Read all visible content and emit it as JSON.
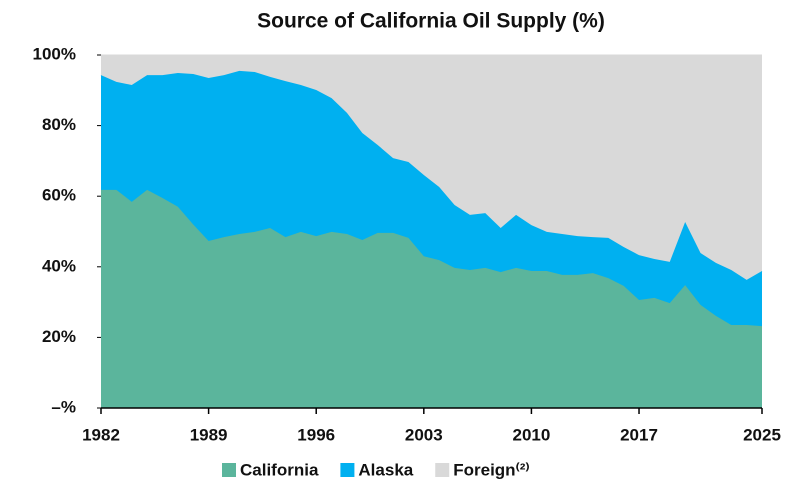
{
  "chart_data": {
    "type": "stacked_area",
    "title": "Source of California Oil Supply (%)",
    "x": [
      1982,
      1983,
      1984,
      1985,
      1986,
      1987,
      1988,
      1989,
      1990,
      1991,
      1992,
      1993,
      1994,
      1995,
      1996,
      1997,
      1998,
      1999,
      2000,
      2001,
      2002,
      2003,
      2004,
      2005,
      2006,
      2007,
      2008,
      2009,
      2010,
      2011,
      2012,
      2013,
      2014,
      2015,
      2016,
      2017,
      2018,
      2019,
      2020,
      2021,
      2022,
      2023,
      2024,
      2025
    ],
    "series": [
      {
        "name": "California",
        "color": "#5bb59c",
        "values": [
          61.8,
          61.8,
          58.4,
          61.8,
          59.5,
          57,
          52,
          47.3,
          48.4,
          49.3,
          49.9,
          51,
          48.4,
          49.9,
          48.7,
          49.9,
          49.3,
          47.6,
          49.6,
          49.6,
          48.2,
          43,
          41.9,
          39.7,
          39.1,
          39.7,
          38.5,
          39.7,
          38.8,
          38.8,
          37.7,
          37.7,
          38.2,
          36.8,
          34.6,
          30.6,
          31.2,
          29.7,
          34.8,
          29.2,
          26.1,
          23.5,
          23.5,
          23.2
        ]
      },
      {
        "name": "Alaska",
        "color": "#00b0f0",
        "values": [
          32.5,
          30.6,
          33.1,
          32.5,
          34.8,
          37.9,
          42.6,
          46.2,
          45.9,
          46.2,
          45.3,
          42.8,
          44.2,
          41.6,
          41.4,
          37.9,
          34.3,
          30.3,
          24.9,
          21.2,
          21.5,
          23,
          20.7,
          17.8,
          15.6,
          15.5,
          12.5,
          15,
          13,
          11.1,
          11.6,
          11,
          10.2,
          11.4,
          11,
          12.7,
          11,
          11.7,
          17.9,
          14.7,
          15,
          15.6,
          12.8,
          15.6
        ]
      },
      {
        "name": "Foreign⁽²⁾",
        "color": "#d9d9d9",
        "values": [
          5.7,
          7.6,
          8.5,
          5.7,
          5.7,
          5.1,
          5.4,
          6.5,
          5.7,
          4.5,
          4.8,
          6.2,
          7.4,
          8.5,
          9.9,
          12.2,
          16.4,
          22.1,
          25.5,
          29.2,
          30.3,
          34,
          37.4,
          42.5,
          45.3,
          44.8,
          49,
          45.3,
          48.2,
          50.1,
          50.7,
          51.3,
          51.6,
          51.8,
          54.4,
          56.7,
          57.8,
          58.6,
          47.3,
          56.1,
          58.9,
          60.9,
          63.7,
          61.2
        ]
      }
    ],
    "xlim": [
      1982,
      2025
    ],
    "xticks": [
      1982,
      1989,
      1996,
      2003,
      2010,
      2017,
      2025
    ],
    "ylim": [
      0,
      100
    ],
    "yticks": [
      {
        "value": 0,
        "label": "–%"
      },
      {
        "value": 20,
        "label": "20%"
      },
      {
        "value": 40,
        "label": "40%"
      },
      {
        "value": 60,
        "label": "60%"
      },
      {
        "value": 80,
        "label": "80%"
      },
      {
        "value": 100,
        "label": "100%"
      }
    ],
    "legend": "bottom"
  }
}
